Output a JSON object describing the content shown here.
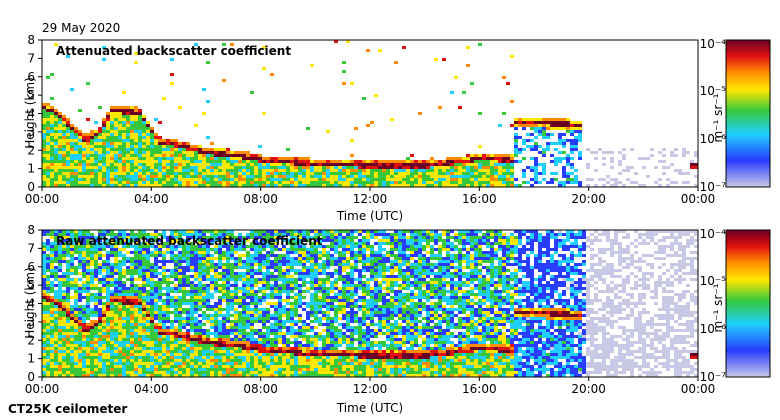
{
  "date": "29 May 2020",
  "instrument": "CT25K ceilometer",
  "colorscale": {
    "stops": [
      "#c9c9e6",
      "#2a3cff",
      "#1fd0ff",
      "#36c83a",
      "#ffe800",
      "#ff8c00",
      "#e01010",
      "#6a0026"
    ]
  },
  "chart_data": [
    {
      "type": "heatmap",
      "title": "Attenuated backscatter coefficient",
      "xlabel": "Time (UTC)",
      "ylabel": "Height (km)",
      "xlim": [
        0,
        24
      ],
      "ylim": [
        0,
        8
      ],
      "xticks": [
        0,
        4,
        8,
        12,
        16,
        20,
        24
      ],
      "xtick_labels": [
        "00:00",
        "04:00",
        "08:00",
        "12:00",
        "16:00",
        "20:00",
        "00:00"
      ],
      "yticks": [
        0,
        1,
        2,
        3,
        4,
        5,
        6,
        7,
        8
      ],
      "ytick_labels": [
        "0",
        "1",
        "2",
        "3",
        "4",
        "5",
        "6",
        "7",
        "8"
      ],
      "colorbar": {
        "label": "m⁻¹ sr⁻¹",
        "scale": "log",
        "range": [
          1e-07,
          0.0001
        ],
        "ticks": [
          "10⁻⁴",
          "10⁻⁵",
          "10⁻⁶",
          "10⁻⁷"
        ]
      },
      "layers": [
        {
          "name": "boundary-layer-top",
          "points": [
            [
              0,
              4.4
            ],
            [
              0.5,
              4.0
            ],
            [
              1,
              3.3
            ],
            [
              1.5,
              2.6
            ],
            [
              2,
              3.0
            ],
            [
              2.5,
              4.2
            ],
            [
              3.5,
              4.1
            ],
            [
              4.2,
              2.5
            ],
            [
              5,
              2.3
            ],
            [
              6,
              1.9
            ],
            [
              7,
              1.8
            ],
            [
              8,
              1.5
            ],
            [
              10,
              1.3
            ],
            [
              12,
              1.2
            ],
            [
              14,
              1.2
            ],
            [
              16,
              1.6
            ],
            [
              17.2,
              1.5
            ]
          ]
        },
        {
          "name": "elevated-layer",
          "points": [
            [
              17.2,
              3.6
            ],
            [
              18,
              3.6
            ],
            [
              19,
              3.5
            ],
            [
              19.7,
              3.4
            ]
          ]
        },
        {
          "name": "late-layer",
          "points": [
            [
              23.7,
              1.2
            ],
            [
              24,
              1.2
            ]
          ]
        }
      ]
    },
    {
      "type": "heatmap",
      "title": "Raw attenuated backscatter coefficient",
      "xlabel": "Time (UTC)",
      "ylabel": "Height (km)",
      "xlim": [
        0,
        24
      ],
      "ylim": [
        0,
        8
      ],
      "xticks": [
        0,
        4,
        8,
        12,
        16,
        20,
        24
      ],
      "xtick_labels": [
        "00:00",
        "04:00",
        "08:00",
        "12:00",
        "16:00",
        "20:00",
        "00:00"
      ],
      "yticks": [
        0,
        1,
        2,
        3,
        4,
        5,
        6,
        7,
        8
      ],
      "ytick_labels": [
        "0",
        "1",
        "2",
        "3",
        "4",
        "5",
        "6",
        "7",
        "8"
      ],
      "colorbar": {
        "label": "m⁻¹ sr⁻¹",
        "scale": "log",
        "range": [
          1e-07,
          0.0001
        ],
        "ticks": [
          "10⁻⁴",
          "10⁻⁵",
          "10⁻⁶",
          "10⁻⁷"
        ]
      }
    }
  ]
}
